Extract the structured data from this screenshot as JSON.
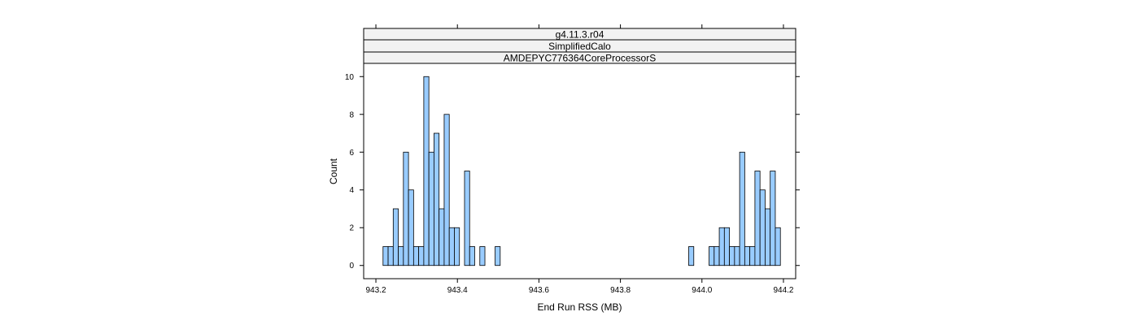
{
  "chart_data": {
    "type": "bar",
    "strips": [
      "g4.11.3.r04",
      "SimplifiedCalo",
      "AMDEPYC776364CoreProcessorS"
    ],
    "xlabel": "End Run RSS (MB)",
    "ylabel": "Count",
    "xlim": [
      943.17,
      944.23
    ],
    "ylim": [
      -0.7,
      10.7
    ],
    "x_ticks": [
      "943.2",
      "943.4",
      "943.6",
      "943.8",
      "944.0",
      "944.2"
    ],
    "y_ticks": [
      "0",
      "2",
      "4",
      "6",
      "8",
      "10"
    ],
    "bin_start": 943.18,
    "bin_width": 0.0125,
    "counts": [
      0,
      0,
      0,
      1,
      1,
      3,
      1,
      6,
      4,
      1,
      1,
      10,
      6,
      7,
      3,
      8,
      2,
      2,
      0,
      5,
      1,
      0,
      1,
      0,
      0,
      1,
      0,
      0,
      0,
      0,
      0,
      0,
      0,
      0,
      0,
      0,
      0,
      0,
      0,
      0,
      0,
      0,
      0,
      0,
      0,
      0,
      0,
      0,
      0,
      0,
      0,
      0,
      0,
      0,
      0,
      0,
      0,
      0,
      0,
      0,
      0,
      0,
      0,
      1,
      0,
      0,
      0,
      1,
      1,
      2,
      2,
      1,
      1,
      6,
      1,
      1,
      5,
      4,
      3,
      5,
      2,
      0
    ],
    "bar_color": "#99ccff",
    "bar_edge_color": "#000000",
    "strip_color": "#f2f2f2",
    "grid": false
  }
}
